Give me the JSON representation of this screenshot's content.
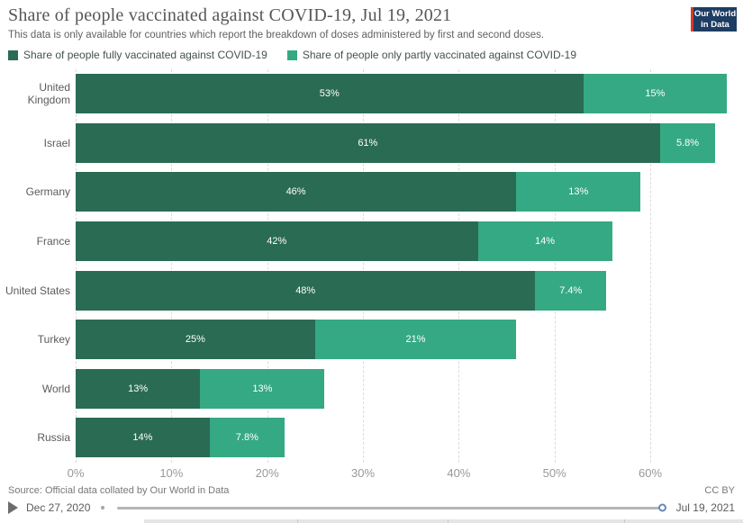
{
  "header": {
    "title": "Share of people vaccinated against COVID-19, Jul 19, 2021",
    "subtitle": "This data is only available for countries which report the breakdown of doses administered by first and second doses."
  },
  "logo": {
    "line1": "Our World",
    "line2": "in Data",
    "bg_color": "#1d3d63",
    "accent_color": "#d43b2b"
  },
  "legend": {
    "items": [
      {
        "label": "Share of people fully vaccinated against COVID-19",
        "color": "#2a6b54"
      },
      {
        "label": "Share of people only partly vaccinated against COVID-19",
        "color": "#35a983"
      }
    ]
  },
  "chart_data": {
    "type": "bar",
    "orientation": "horizontal",
    "stacked": true,
    "title": "Share of people vaccinated against COVID-19, Jul 19, 2021",
    "xlabel": "",
    "ylabel": "",
    "xlim": [
      0,
      69.4
    ],
    "grid": "dashed-vertical",
    "legend_position": "top-left",
    "categories": [
      "United Kingdom",
      "Israel",
      "Germany",
      "France",
      "United States",
      "Turkey",
      "World",
      "Russia"
    ],
    "series": [
      {
        "name": "Share of people fully vaccinated against COVID-19",
        "color": "#2a6b54",
        "values": [
          53,
          61,
          46,
          42,
          48,
          25,
          13,
          14
        ],
        "labels": [
          "53%",
          "61%",
          "46%",
          "42%",
          "48%",
          "25%",
          "13%",
          "14%"
        ]
      },
      {
        "name": "Share of people only partly vaccinated against COVID-19",
        "color": "#35a983",
        "values": [
          15,
          5.8,
          13,
          14,
          7.4,
          21,
          13,
          7.8
        ],
        "labels": [
          "15%",
          "5.8%",
          "13%",
          "14%",
          "7.4%",
          "21%",
          "13%",
          "7.8%"
        ]
      }
    ],
    "ticks": [
      {
        "value": 0,
        "label": "0%"
      },
      {
        "value": 10,
        "label": "10%"
      },
      {
        "value": 20,
        "label": "20%"
      },
      {
        "value": 30,
        "label": "30%"
      },
      {
        "value": 40,
        "label": "40%"
      },
      {
        "value": 50,
        "label": "50%"
      },
      {
        "value": 60,
        "label": "60%"
      }
    ]
  },
  "footer": {
    "source": "Source: Official data collated by Our World in Data",
    "license": "CC BY"
  },
  "timeline": {
    "start_date": "Dec 27, 2020",
    "end_date": "Jul 19, 2021",
    "handle_color": "#6787b7"
  }
}
